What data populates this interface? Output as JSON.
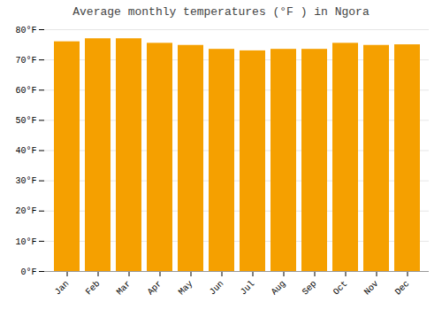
{
  "chart_data": {
    "type": "bar",
    "title": "Average monthly temperatures (°F ) in Ngora",
    "categories": [
      "Jan",
      "Feb",
      "Mar",
      "Apr",
      "May",
      "Jun",
      "Jul",
      "Aug",
      "Sep",
      "Oct",
      "Nov",
      "Dec"
    ],
    "values": [
      76.0,
      77.0,
      77.0,
      75.5,
      74.8,
      73.5,
      73.0,
      73.5,
      73.5,
      75.5,
      74.8,
      75.0
    ],
    "color": "#F5A000",
    "ylim": [
      0,
      80
    ],
    "yticks": [
      {
        "value": 0,
        "label": "0°F"
      },
      {
        "value": 10,
        "label": "10°F"
      },
      {
        "value": 20,
        "label": "20°F"
      },
      {
        "value": 30,
        "label": "30°F"
      },
      {
        "value": 40,
        "label": "40°F"
      },
      {
        "value": 50,
        "label": "50°F"
      },
      {
        "value": 60,
        "label": "60°F"
      },
      {
        "value": 70,
        "label": "70°F"
      },
      {
        "value": 80,
        "label": "80°F"
      }
    ],
    "grid": true
  }
}
